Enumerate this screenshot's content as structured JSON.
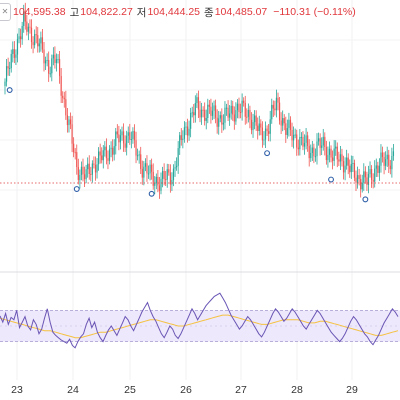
{
  "header": {
    "open_value": "104,595.38",
    "high_label": "고",
    "high_value": "104,822.27",
    "low_label": "저",
    "low_value": "104,444.25",
    "close_label": "종",
    "close_value": "104,485.07",
    "change": "−110.31 (−0.11%)",
    "close_icon": "close-x-icon"
  },
  "colors": {
    "up": "#26a69a",
    "down": "#ef5350",
    "rsi_line": "#6a55b5",
    "rsi_ma": "#f5c242",
    "rsi_band": "#ede8fb",
    "price_line": "#e0373c"
  },
  "chart_data": [
    {
      "type": "candlestick",
      "title": "",
      "x_ticks": [
        "23",
        "24",
        "25",
        "26",
        "27",
        "28",
        "29"
      ],
      "anchors": [
        [
          0,
          104750
        ],
        [
          6,
          104810
        ],
        [
          12,
          104860
        ],
        [
          20,
          104830
        ],
        [
          28,
          104780
        ],
        [
          33,
          104790
        ],
        [
          40,
          104680
        ],
        [
          46,
          104590
        ],
        [
          52,
          104570
        ],
        [
          58,
          104600
        ],
        [
          64,
          104610
        ],
        [
          72,
          104640
        ],
        [
          80,
          104650
        ],
        [
          88,
          104590
        ],
        [
          94,
          104570
        ],
        [
          100,
          104560
        ],
        [
          108,
          104580
        ],
        [
          114,
          104650
        ],
        [
          122,
          104700
        ],
        [
          132,
          104690
        ],
        [
          140,
          104680
        ],
        [
          148,
          104700
        ],
        [
          156,
          104690
        ],
        [
          164,
          104650
        ],
        [
          168,
          104660
        ],
        [
          174,
          104710
        ],
        [
          180,
          104660
        ],
        [
          188,
          104640
        ],
        [
          196,
          104620
        ],
        [
          204,
          104630
        ],
        [
          210,
          104610
        ],
        [
          218,
          104600
        ],
        [
          222,
          104580
        ],
        [
          226,
          104570
        ],
        [
          232,
          104560
        ],
        [
          238,
          104590
        ],
        [
          244,
          104600
        ],
        [
          249,
          104610
        ]
      ],
      "markers": [
        3,
        46,
        94,
        168,
        209,
        231
      ],
      "reference_price": 104500
    },
    {
      "type": "line",
      "title": "",
      "series": [
        {
          "values": [
            63,
            55,
            66,
            52,
            61,
            58,
            70,
            48,
            55,
            62,
            50,
            45,
            58,
            52,
            40,
            46,
            60,
            72,
            55,
            42,
            38,
            35,
            32,
            30,
            28,
            33,
            25,
            22,
            30,
            36,
            40,
            52,
            60,
            48,
            55,
            42,
            35,
            30,
            38,
            45,
            50,
            44,
            38,
            46,
            54,
            62,
            58,
            50,
            44,
            52,
            60,
            68,
            74,
            80,
            70,
            62,
            56,
            48,
            40,
            35,
            42,
            50,
            46,
            38,
            34,
            40,
            48,
            56,
            64,
            72,
            66,
            58,
            64,
            70,
            76,
            80,
            84,
            88,
            90,
            92,
            86,
            80,
            72,
            64,
            58,
            52,
            46,
            50,
            56,
            62,
            58,
            52,
            46,
            40,
            36,
            42,
            50,
            58,
            66,
            72,
            68,
            62,
            56,
            60,
            66,
            72,
            68,
            62,
            56,
            50,
            46,
            52,
            58,
            64,
            70,
            66,
            60,
            54,
            48,
            42,
            38,
            34,
            30,
            34,
            40,
            48,
            56,
            62,
            58,
            52,
            46,
            40,
            36,
            30,
            26,
            32,
            38,
            46,
            54,
            60,
            66,
            72,
            68,
            62
          ]
        },
        {
          "values": [
            60,
            59,
            58,
            57,
            56,
            55,
            54,
            53,
            52,
            51,
            50,
            49,
            48,
            47,
            46,
            45,
            44,
            44,
            44,
            43,
            42,
            41,
            40,
            39,
            38,
            37,
            36,
            35,
            35,
            35,
            36,
            37,
            38,
            39,
            40,
            41,
            42,
            42,
            42,
            43,
            44,
            45,
            46,
            47,
            48,
            49,
            50,
            51,
            52,
            53,
            54,
            55,
            56,
            57,
            58,
            58,
            58,
            57,
            56,
            55,
            54,
            53,
            52,
            51,
            50,
            50,
            50,
            51,
            52,
            53,
            54,
            55,
            56,
            57,
            58,
            59,
            60,
            61,
            62,
            63,
            64,
            64,
            64,
            63,
            62,
            61,
            60,
            59,
            58,
            57,
            56,
            55,
            54,
            53,
            52,
            52,
            52,
            53,
            54,
            55,
            56,
            57,
            58,
            58,
            58,
            58,
            58,
            58,
            57,
            56,
            55,
            54,
            54,
            54,
            55,
            56,
            56,
            56,
            55,
            54,
            53,
            52,
            51,
            50,
            49,
            48,
            47,
            46,
            45,
            44,
            43,
            42,
            41,
            40,
            39,
            38,
            38,
            38,
            39,
            40,
            41,
            42,
            43,
            44
          ]
        }
      ],
      "ylim": [
        0,
        100
      ],
      "band": [
        30,
        70
      ]
    }
  ]
}
